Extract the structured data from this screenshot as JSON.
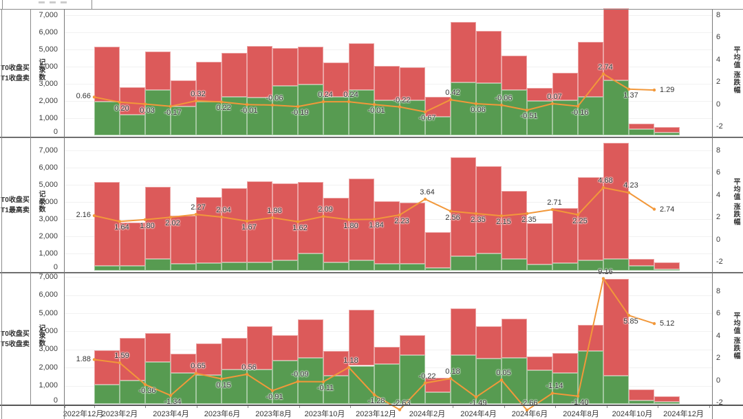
{
  "chart_data": {
    "type": "bar",
    "subtype": "stacked-bar-with-line-overlay",
    "grid": true,
    "legend_position": "none",
    "x_tick_labels": [
      "2022年12月",
      "2023年2月",
      "2023年4月",
      "2023年6月",
      "2023年8月",
      "2023年10月",
      "2023年12月",
      "2024年2月",
      "2024年4月",
      "2024年6月",
      "2024年8月",
      "2024年10月",
      "2024年12月"
    ],
    "n_bars_per_panel": 23,
    "left_axis": {
      "label": "记录数",
      "ylim": [
        0,
        7000
      ],
      "ticks": [
        "0",
        "1,000",
        "2,000",
        "3,000",
        "4,000",
        "5,000",
        "6,000",
        "7,000"
      ]
    },
    "right_axis": {
      "label": "平均值 涨跌幅",
      "ticks": [
        "-2",
        "0",
        "2",
        "4",
        "6",
        "8"
      ]
    },
    "colors": {
      "bar_red": "#dc5a5a",
      "bar_green": "#579b51",
      "line_orange": "#f2983a"
    },
    "panels": [
      {
        "row_label_line1": "T0收盘买",
        "row_label_line2": "T1收盘卖",
        "series": [
          {
            "name": "green-bottom-count",
            "type": "bar",
            "values": [
              1950,
              1200,
              2650,
              1700,
              1950,
              2250,
              2200,
              2900,
              2950,
              2250,
              2650,
              2050,
              2050,
              1100,
              3100,
              3050,
              2650,
              2000,
              2050,
              2250,
              3200,
              350,
              180
            ]
          },
          {
            "name": "red-top-count",
            "type": "bar",
            "values": [
              3200,
              1600,
              2250,
              1500,
              2350,
              2550,
              3000,
              2200,
              2200,
              2000,
              2700,
              2000,
              1900,
              1150,
              3500,
              3050,
              2000,
              750,
              1600,
              3200,
              4200,
              350,
              300
            ]
          },
          {
            "name": "平均值 涨跌幅",
            "type": "line",
            "values": [
              0.66,
              0.2,
              0.03,
              -0.17,
              0.32,
              0.22,
              -0.01,
              -0.06,
              -0.19,
              0.24,
              0.24,
              -0.01,
              -0.22,
              -0.67,
              0.42,
              0.06,
              -0.06,
              -0.51,
              0.07,
              -0.16,
              2.74,
              1.37,
              1.29
            ]
          }
        ]
      },
      {
        "row_label_line1": "T0收盘买",
        "row_label_line2": "T1最高卖",
        "series": [
          {
            "name": "green-bottom-count",
            "type": "bar",
            "values": [
              300,
              300,
              700,
              400,
              450,
              500,
              500,
              600,
              1000,
              500,
              600,
              400,
              400,
              150,
              850,
              1000,
              700,
              350,
              450,
              600,
              700,
              300,
              100
            ]
          },
          {
            "name": "red-top-count",
            "type": "bar",
            "values": [
              4850,
              2500,
              4200,
              2800,
              3850,
              4300,
              4700,
              4500,
              4150,
              3750,
              4750,
              3650,
              3550,
              2100,
              5750,
              5100,
              3950,
              2400,
              3200,
              4850,
              6750,
              400,
              380
            ]
          },
          {
            "name": "平均值 涨跌幅",
            "type": "line",
            "values": [
              2.16,
              1.64,
              1.8,
              2.02,
              2.27,
              2.04,
              1.67,
              1.98,
              1.62,
              2.09,
              1.8,
              1.84,
              2.23,
              3.64,
              2.56,
              2.35,
              2.15,
              2.35,
              2.71,
              2.25,
              4.68,
              4.23,
              2.74
            ]
          }
        ]
      },
      {
        "row_label_line1": "T0收盘买",
        "row_label_line2": "T5收盘卖",
        "series": [
          {
            "name": "green-bottom-count",
            "type": "bar",
            "values": [
              1050,
              1300,
              2300,
              1700,
              1600,
              1900,
              1900,
              2400,
              2550,
              1550,
              2100,
              2200,
              2700,
              650,
              2700,
              2500,
              2550,
              1850,
              1700,
              2900,
              1550,
              200,
              100
            ]
          },
          {
            "name": "red-top-count",
            "type": "bar",
            "values": [
              1900,
              2350,
              1600,
              1050,
              1750,
              1750,
              2400,
              1400,
              2100,
              1350,
              3100,
              950,
              1100,
              800,
              2550,
              1800,
              2150,
              750,
              1100,
              1450,
              5350,
              600,
              300
            ]
          },
          {
            "name": "平均值 涨跌幅",
            "type": "line",
            "values": [
              1.88,
              1.59,
              -0.36,
              -1.34,
              0.65,
              0.15,
              0.56,
              -0.91,
              -0.09,
              -0.11,
              1.18,
              -1.28,
              -2.63,
              -0.22,
              0.18,
              -1.49,
              0.05,
              -2.66,
              -1.14,
              -1.4,
              9.16,
              5.85,
              5.12
            ]
          }
        ]
      }
    ]
  }
}
